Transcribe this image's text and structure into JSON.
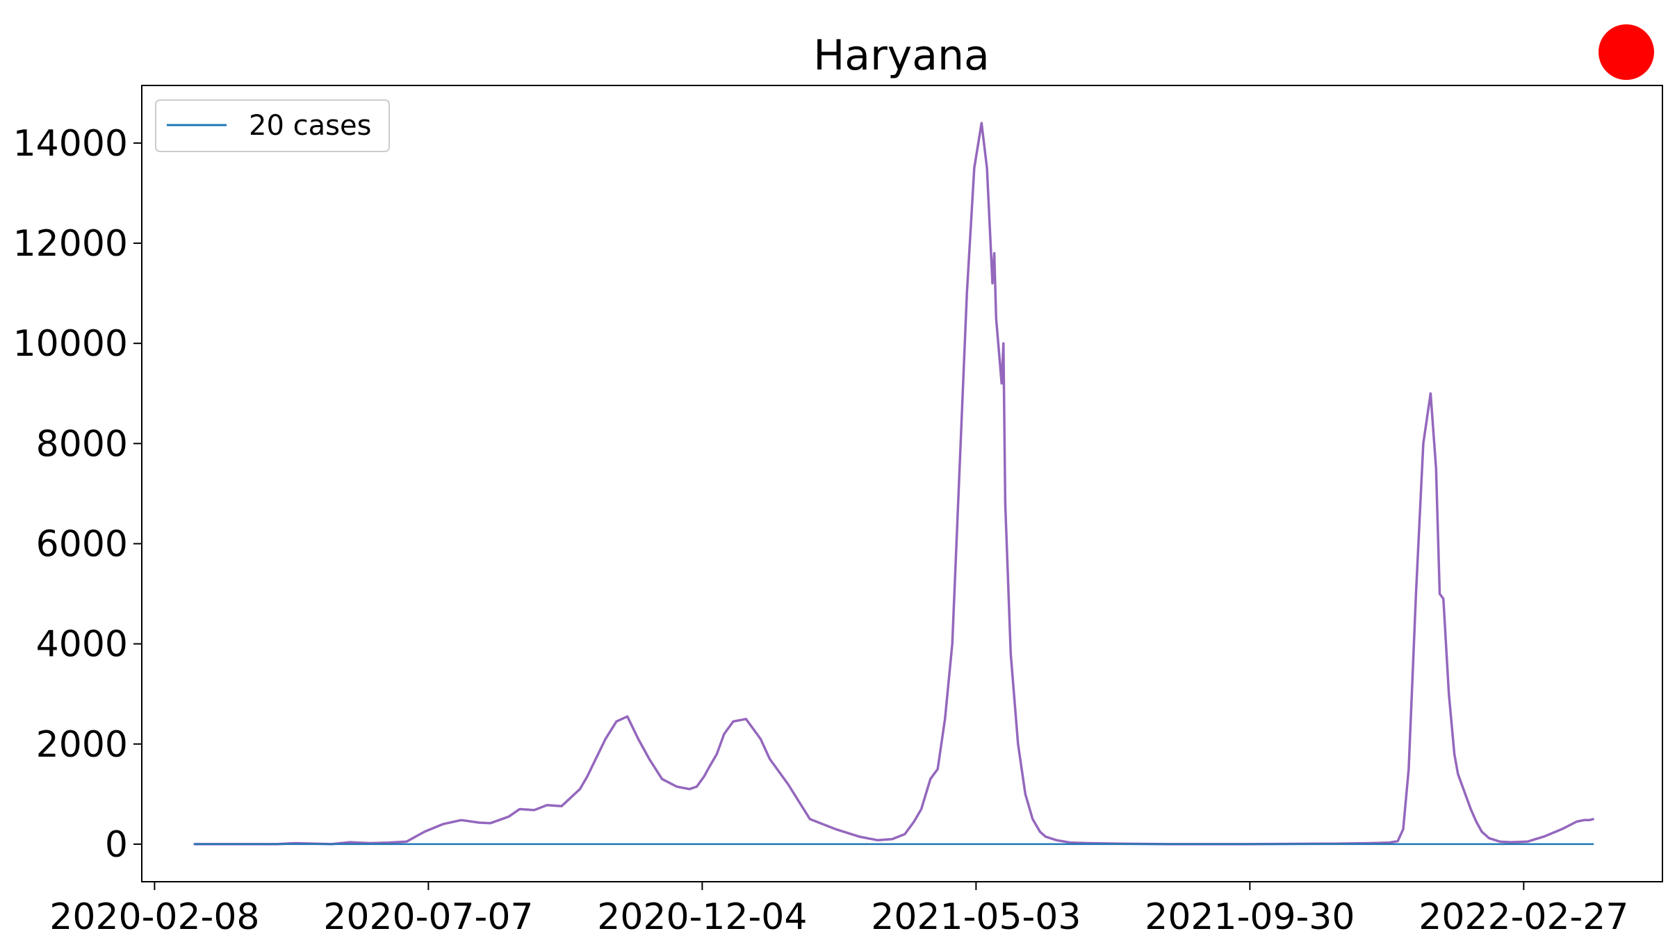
{
  "chart_data": {
    "type": "line",
    "title": "Haryana",
    "xlabel": "",
    "ylabel": "",
    "x_ticks": [
      "2020-02-08",
      "2020-07-07",
      "2020-12-04",
      "2021-05-03",
      "2021-09-30",
      "2022-02-27"
    ],
    "y_ticks": [
      0,
      2000,
      4000,
      6000,
      8000,
      10000,
      12000,
      14000
    ],
    "xlim": [
      "2020-02-01",
      "2022-05-14"
    ],
    "ylim": [
      -750,
      15150
    ],
    "grid": false,
    "legend": {
      "placement": "top-left",
      "entries": [
        "20 cases"
      ]
    },
    "series": [
      {
        "name": "20 cases",
        "color": "#1f77b4",
        "x": [
          "2020-03-01",
          "2022-04-06"
        ],
        "y": [
          0,
          0
        ]
      },
      {
        "color": "#9467bd",
        "x": [
          "2020-03-01",
          "2020-04-15",
          "2020-04-25",
          "2020-05-15",
          "2020-05-25",
          "2020-06-05",
          "2020-06-15",
          "2020-06-25",
          "2020-07-05",
          "2020-07-15",
          "2020-07-25",
          "2020-08-04",
          "2020-08-10",
          "2020-08-20",
          "2020-08-26",
          "2020-09-03",
          "2020-09-10",
          "2020-09-18",
          "2020-09-28",
          "2020-10-02",
          "2020-10-06",
          "2020-10-12",
          "2020-10-18",
          "2020-10-24",
          "2020-10-30",
          "2020-11-05",
          "2020-11-12",
          "2020-11-20",
          "2020-11-27",
          "2020-12-01",
          "2020-12-05",
          "2020-12-08",
          "2020-12-12",
          "2020-12-16",
          "2020-12-21",
          "2020-12-28",
          "2021-01-05",
          "2021-01-10",
          "2021-01-20",
          "2021-02-01",
          "2021-02-15",
          "2021-02-28",
          "2021-03-10",
          "2021-03-18",
          "2021-03-25",
          "2021-03-30",
          "2021-04-03",
          "2021-04-08",
          "2021-04-12",
          "2021-04-16",
          "2021-04-20",
          "2021-04-24",
          "2021-04-28",
          "2021-05-02",
          "2021-05-06",
          "2021-05-09",
          "2021-05-12",
          "2021-05-13",
          "2021-05-14",
          "2021-05-17",
          "2021-05-18",
          "2021-05-19",
          "2021-05-22",
          "2021-05-26",
          "2021-05-30",
          "2021-06-03",
          "2021-06-07",
          "2021-06-10",
          "2021-06-16",
          "2021-06-24",
          "2021-07-04",
          "2021-07-20",
          "2021-08-15",
          "2021-09-30",
          "2021-11-15",
          "2021-12-05",
          "2021-12-15",
          "2021-12-20",
          "2021-12-23",
          "2021-12-26",
          "2021-12-30",
          "2022-01-03",
          "2022-01-07",
          "2022-01-10",
          "2022-01-12",
          "2022-01-14",
          "2022-01-17",
          "2022-01-20",
          "2022-01-22",
          "2022-01-26",
          "2022-01-29",
          "2022-02-01",
          "2022-02-04",
          "2022-02-08",
          "2022-02-14",
          "2022-02-20",
          "2022-03-01",
          "2022-03-10",
          "2022-03-20",
          "2022-03-28",
          "2022-04-01",
          "2022-04-04",
          "2022-04-06"
        ],
        "y": [
          0,
          0,
          20,
          0,
          40,
          20,
          30,
          50,
          250,
          400,
          480,
          430,
          420,
          550,
          700,
          680,
          780,
          760,
          1100,
          1350,
          1650,
          2100,
          2450,
          2550,
          2100,
          1700,
          1300,
          1150,
          1100,
          1150,
          1350,
          1550,
          1800,
          2200,
          2450,
          2500,
          2100,
          1700,
          1200,
          500,
          300,
          150,
          80,
          100,
          200,
          450,
          700,
          1300,
          1500,
          2500,
          4000,
          7500,
          11000,
          13500,
          14400,
          13500,
          11200,
          11800,
          10500,
          9200,
          10000,
          6800,
          3800,
          2000,
          1000,
          500,
          250,
          150,
          80,
          30,
          20,
          10,
          0,
          0,
          10,
          20,
          30,
          60,
          300,
          1500,
          5000,
          8000,
          9000,
          7500,
          5000,
          4900,
          3000,
          1800,
          1400,
          1000,
          700,
          450,
          250,
          120,
          50,
          40,
          50,
          150,
          300,
          450,
          480,
          480,
          500
        ]
      }
    ]
  }
}
